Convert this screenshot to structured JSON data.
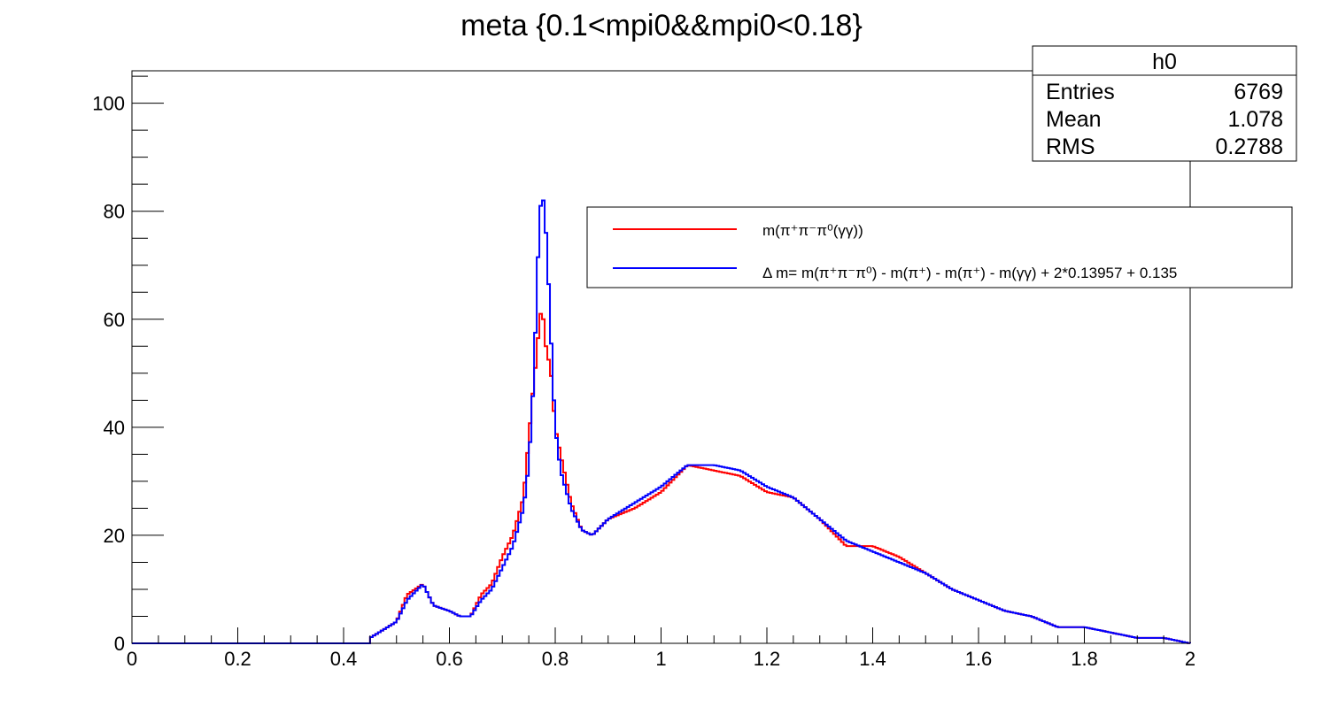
{
  "chart_data": {
    "type": "line",
    "title": "meta {0.1<mpi0&&mpi0<0.18}",
    "xlabel": "",
    "ylabel": "",
    "xlim": [
      0,
      2
    ],
    "ylim": [
      0,
      106
    ],
    "x_ticks": [
      "0",
      "0.2",
      "0.4",
      "0.6",
      "0.8",
      "1",
      "1.2",
      "1.4",
      "1.6",
      "1.8",
      "2"
    ],
    "y_ticks": [
      "0",
      "20",
      "40",
      "60",
      "80",
      "100"
    ],
    "bin_width": 0.005,
    "grid": false,
    "legend_position": "top-right",
    "stats": {
      "name": "h0",
      "rows": [
        {
          "label": "Entries",
          "value": "6769"
        },
        {
          "label": "Mean",
          "value": "1.078"
        },
        {
          "label": "RMS",
          "value": "0.2788"
        }
      ]
    },
    "series": [
      {
        "name": "m(π⁺π⁻π⁰(γγ))",
        "color": "#ff0000",
        "points": [
          [
            0.45,
            1
          ],
          [
            0.5,
            4
          ],
          [
            0.52,
            9
          ],
          [
            0.55,
            11
          ],
          [
            0.57,
            7
          ],
          [
            0.6,
            6
          ],
          [
            0.62,
            5
          ],
          [
            0.64,
            5
          ],
          [
            0.66,
            9
          ],
          [
            0.68,
            11
          ],
          [
            0.7,
            16
          ],
          [
            0.72,
            20
          ],
          [
            0.74,
            27
          ],
          [
            0.75,
            38
          ],
          [
            0.76,
            49
          ],
          [
            0.765,
            53
          ],
          [
            0.77,
            60
          ],
          [
            0.775,
            62
          ],
          [
            0.78,
            58
          ],
          [
            0.785,
            52
          ],
          [
            0.79,
            53
          ],
          [
            0.795,
            46
          ],
          [
            0.8,
            40
          ],
          [
            0.81,
            35
          ],
          [
            0.83,
            26
          ],
          [
            0.85,
            21
          ],
          [
            0.87,
            20
          ],
          [
            0.9,
            23
          ],
          [
            0.95,
            25
          ],
          [
            1.0,
            28
          ],
          [
            1.05,
            33
          ],
          [
            1.1,
            32
          ],
          [
            1.15,
            31
          ],
          [
            1.2,
            28
          ],
          [
            1.25,
            27
          ],
          [
            1.3,
            23
          ],
          [
            1.35,
            18
          ],
          [
            1.4,
            18
          ],
          [
            1.45,
            16
          ],
          [
            1.5,
            13
          ],
          [
            1.55,
            10
          ],
          [
            1.6,
            8
          ],
          [
            1.65,
            6
          ],
          [
            1.7,
            5
          ],
          [
            1.75,
            3
          ],
          [
            1.8,
            3
          ],
          [
            1.85,
            2
          ],
          [
            1.9,
            1
          ],
          [
            1.95,
            1
          ],
          [
            2.0,
            0
          ]
        ]
      },
      {
        "name": "Δ m= m(π⁺π⁻π⁰) - m(π⁺) -  m(π⁺) - m(γγ) + 2*0.13957 + 0.135",
        "color": "#0000ff",
        "points": [
          [
            0.45,
            1
          ],
          [
            0.5,
            4
          ],
          [
            0.52,
            8
          ],
          [
            0.55,
            11
          ],
          [
            0.57,
            7
          ],
          [
            0.6,
            6
          ],
          [
            0.62,
            5
          ],
          [
            0.64,
            5
          ],
          [
            0.66,
            8
          ],
          [
            0.68,
            10
          ],
          [
            0.7,
            14
          ],
          [
            0.72,
            18
          ],
          [
            0.74,
            25
          ],
          [
            0.75,
            33
          ],
          [
            0.76,
            50
          ],
          [
            0.765,
            65
          ],
          [
            0.77,
            78
          ],
          [
            0.775,
            84
          ],
          [
            0.78,
            80
          ],
          [
            0.785,
            72
          ],
          [
            0.79,
            61
          ],
          [
            0.795,
            50
          ],
          [
            0.8,
            40
          ],
          [
            0.81,
            32
          ],
          [
            0.83,
            25
          ],
          [
            0.85,
            21
          ],
          [
            0.87,
            20
          ],
          [
            0.9,
            23
          ],
          [
            0.95,
            26
          ],
          [
            1.0,
            29
          ],
          [
            1.05,
            33
          ],
          [
            1.1,
            33
          ],
          [
            1.15,
            32
          ],
          [
            1.2,
            29
          ],
          [
            1.25,
            27
          ],
          [
            1.3,
            23
          ],
          [
            1.35,
            19
          ],
          [
            1.4,
            17
          ],
          [
            1.45,
            15
          ],
          [
            1.5,
            13
          ],
          [
            1.55,
            10
          ],
          [
            1.6,
            8
          ],
          [
            1.65,
            6
          ],
          [
            1.7,
            5
          ],
          [
            1.75,
            3
          ],
          [
            1.8,
            3
          ],
          [
            1.85,
            2
          ],
          [
            1.9,
            1
          ],
          [
            1.95,
            1
          ],
          [
            2.0,
            0
          ]
        ]
      }
    ]
  }
}
